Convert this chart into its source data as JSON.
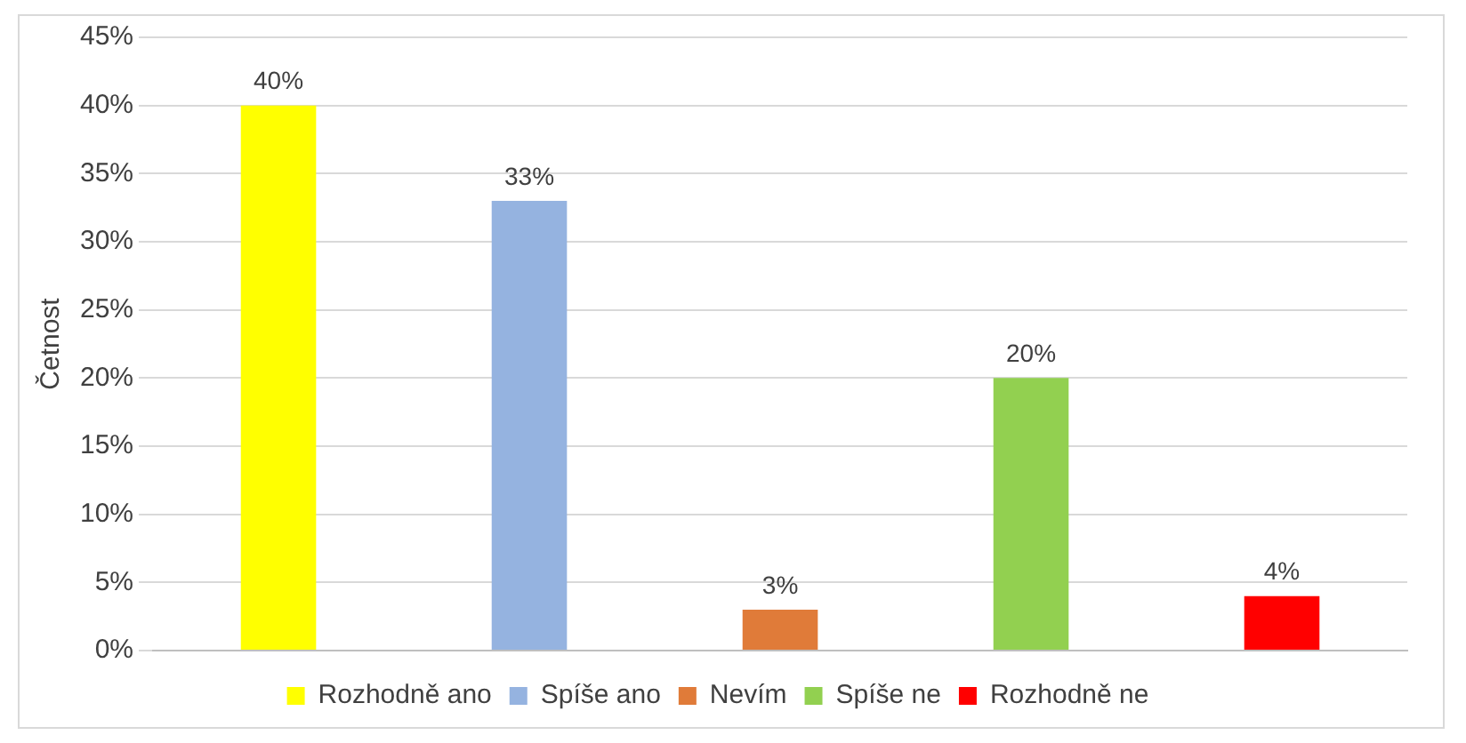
{
  "chart_data": {
    "type": "bar",
    "ylabel": "Četnost",
    "categories": [
      null,
      null,
      null,
      null,
      null
    ],
    "series": [
      {
        "name": "Rozhodně ano",
        "color": "#ffff00",
        "values": [
          40,
          null,
          null,
          null,
          null
        ],
        "value_labels": [
          "40%",
          null,
          null,
          null,
          null
        ]
      },
      {
        "name": "Spíše ano",
        "color": "#95b3e0",
        "values": [
          null,
          33,
          null,
          null,
          null
        ],
        "value_labels": [
          null,
          "33%",
          null,
          null,
          null
        ]
      },
      {
        "name": "Nevím",
        "color": "#e07b39",
        "values": [
          null,
          null,
          3,
          null,
          null
        ],
        "value_labels": [
          null,
          null,
          "3%",
          null,
          null
        ]
      },
      {
        "name": "Spíše ne",
        "color": "#92d050",
        "values": [
          null,
          null,
          null,
          20,
          null
        ],
        "value_labels": [
          null,
          null,
          null,
          "20%",
          null
        ]
      },
      {
        "name": "Rozhodně ne",
        "color": "#ff0000",
        "values": [
          null,
          null,
          null,
          null,
          4
        ],
        "value_labels": [
          null,
          null,
          null,
          null,
          "4%"
        ]
      }
    ],
    "ylim": [
      0,
      45
    ],
    "yticks": [
      {
        "value": 0,
        "label": "0%"
      },
      {
        "value": 5,
        "label": "5%"
      },
      {
        "value": 10,
        "label": "10%"
      },
      {
        "value": 15,
        "label": "15%"
      },
      {
        "value": 20,
        "label": "20%"
      },
      {
        "value": 25,
        "label": "25%"
      },
      {
        "value": 30,
        "label": "30%"
      },
      {
        "value": 35,
        "label": "35%"
      },
      {
        "value": 40,
        "label": "40%"
      },
      {
        "value": 45,
        "label": "45%"
      }
    ],
    "grid": "y",
    "legend": "bottom",
    "tick_labels": "y"
  }
}
